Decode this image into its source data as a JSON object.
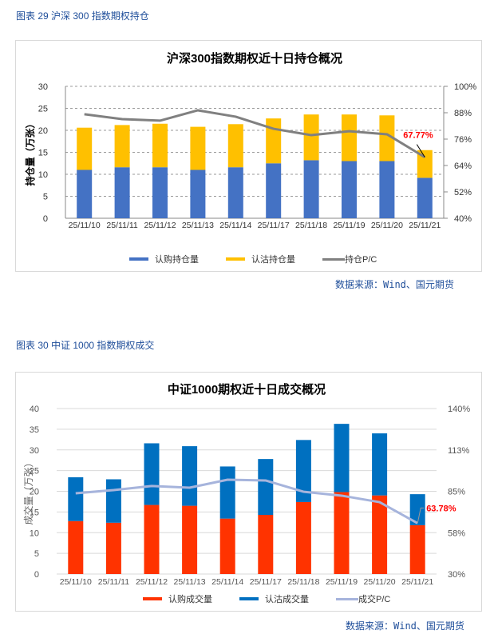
{
  "figures": [
    {
      "caption": "图表 29  沪深 300 指数期权持仓",
      "source": "数据来源：Wind、国元期货",
      "legend": [
        "认购持仓量",
        "认沽持仓量",
        "持仓P/C"
      ]
    },
    {
      "caption": "图表 30  中证 1000 指数期权成交",
      "source": "数据来源：Wind、国元期货",
      "legend": [
        "认购成交量",
        "认沽成交量",
        "成交P/C"
      ]
    }
  ],
  "chart_data": [
    {
      "type": "bar",
      "stacked": true,
      "title": "沪深300指数期权近十日持仓概况",
      "xlabel": "",
      "ylabel": "持仓量（万张）",
      "y2label": "",
      "categories": [
        "25/11/10",
        "25/11/11",
        "25/11/12",
        "25/11/13",
        "25/11/14",
        "25/11/17",
        "25/11/18",
        "25/11/19",
        "25/11/20",
        "25/11/21"
      ],
      "series": [
        {
          "name": "认购持仓量",
          "type": "bar",
          "axis": "left",
          "color": "#4472c4",
          "values": [
            11.0,
            11.6,
            11.6,
            11.0,
            11.6,
            12.5,
            13.2,
            13.0,
            13.0,
            9.2
          ]
        },
        {
          "name": "认沽持仓量",
          "type": "bar",
          "axis": "left",
          "color": "#ffc000",
          "values": [
            9.6,
            9.6,
            9.9,
            9.8,
            9.8,
            10.2,
            10.4,
            10.6,
            10.4,
            6.3
          ]
        },
        {
          "name": "持仓P/C",
          "type": "line",
          "axis": "right",
          "color": "#808080",
          "values": [
            87.3,
            85.1,
            84.4,
            89.1,
            86.2,
            80.7,
            77.8,
            79.6,
            78.2,
            67.77
          ]
        }
      ],
      "ylim": [
        0,
        30
      ],
      "yticks": [
        "0",
        "5",
        "10",
        "15",
        "20",
        "25",
        "30"
      ],
      "y2lim": [
        40,
        100
      ],
      "y2ticks": [
        "40%",
        "52%",
        "64%",
        "76%",
        "88%",
        "100%"
      ],
      "annotation": {
        "text": "67.77%",
        "index": 9,
        "color": "#ff0000"
      },
      "grid": "dashed",
      "legend_position": "bottom"
    },
    {
      "type": "bar",
      "stacked": true,
      "title": "中证1000期权近十日成交概况",
      "xlabel": "",
      "ylabel": "成交量（万张）",
      "categories": [
        "25/11/10",
        "25/11/11",
        "25/11/12",
        "25/11/13",
        "25/11/14",
        "25/11/17",
        "25/11/18",
        "25/11/19",
        "25/11/20",
        "25/11/21"
      ],
      "series": [
        {
          "name": "认购成交量",
          "type": "bar",
          "axis": "left",
          "color": "#ff3300",
          "values": [
            12.8,
            12.4,
            16.7,
            16.5,
            13.4,
            14.3,
            17.4,
            19.8,
            19.0,
            11.8
          ]
        },
        {
          "name": "认沽成交量",
          "type": "bar",
          "axis": "left",
          "color": "#0070c0",
          "values": [
            10.6,
            10.5,
            14.9,
            14.4,
            12.6,
            13.5,
            15.0,
            16.5,
            15.0,
            7.5
          ]
        },
        {
          "name": "成交P/C",
          "type": "line",
          "axis": "right",
          "color": "#a6b4dc",
          "values": [
            83.7,
            85.8,
            88.5,
            87.4,
            92.7,
            92.2,
            84.7,
            82.1,
            77.8,
            63.78
          ]
        }
      ],
      "ylim": [
        0,
        40
      ],
      "yticks": [
        "0",
        "5",
        "10",
        "15",
        "20",
        "25",
        "30",
        "35",
        "40"
      ],
      "y2lim": [
        30,
        140
      ],
      "y2ticks": [
        "30%",
        "58%",
        "85%",
        "113%",
        "140%"
      ],
      "annotation": {
        "text": "63.78%",
        "index": 9,
        "color": "#ff0000"
      },
      "grid": "solid",
      "legend_position": "bottom"
    }
  ]
}
